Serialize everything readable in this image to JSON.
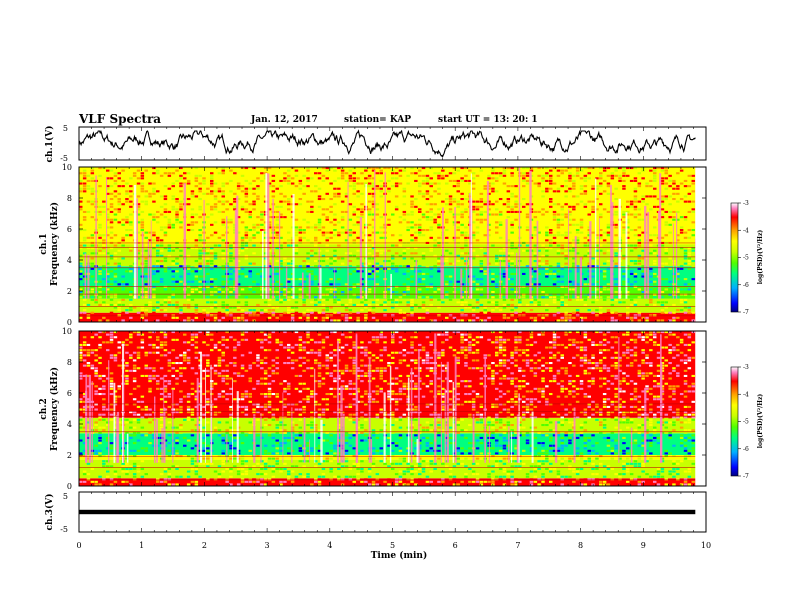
{
  "header": {
    "title": "VLF Spectra",
    "date": "Jan. 12, 2017",
    "station": "station= KAP",
    "start": "start UT = 13: 20: 1"
  },
  "colors": {
    "scale": [
      "#000080",
      "#0000ff",
      "#00b0ff",
      "#00ff80",
      "#50ff00",
      "#c8ff00",
      "#ffff00",
      "#ffa000",
      "#ff0000",
      "#ff80c0",
      "#ffffff"
    ]
  },
  "chart_data": [
    {
      "type": "line",
      "panel": "ch1-waveform",
      "ylabel": "ch.1(V)",
      "ylim": [
        -5,
        5
      ],
      "yticks": [
        "5",
        "-5"
      ],
      "description_values": {
        "mean": 0.5,
        "min": -4.5,
        "max": 3.8
      },
      "x_range": [
        0,
        9.83
      ]
    },
    {
      "type": "heatmap",
      "panel": "ch1-spectrogram",
      "ylabel": "ch.1\nFrequency (kHz)",
      "ylim": [
        0,
        10
      ],
      "yticks": [
        "0",
        "2",
        "4",
        "6",
        "8",
        "10"
      ],
      "x_range": [
        0,
        9.83
      ],
      "bands": [
        {
          "f0": 0,
          "f1": 0.6,
          "level": -4.0
        },
        {
          "f0": 0.6,
          "f1": 1.5,
          "level": -5.0
        },
        {
          "f0": 1.5,
          "f1": 2.3,
          "level": -5.3
        },
        {
          "f0": 2.3,
          "f1": 3.6,
          "level": -5.8
        },
        {
          "f0": 3.6,
          "f1": 5.0,
          "level": -5.0
        },
        {
          "f0": 5.0,
          "f1": 7.0,
          "level": -4.6
        },
        {
          "f0": 7.0,
          "f1": 10.0,
          "level": -4.4
        }
      ],
      "lines_khz": [
        0.4,
        1.0,
        1.8,
        2.3,
        3.5,
        4.2,
        4.8,
        5.1
      ],
      "colorbar": {
        "label": "log(PSD)(V²/Hz)",
        "range": [
          -7,
          -3
        ],
        "ticks": [
          "-3",
          "-4",
          "-5",
          "-6",
          "-7"
        ]
      }
    },
    {
      "type": "heatmap",
      "panel": "ch2-spectrogram",
      "ylabel": "ch.2\nFrequency (kHz)",
      "ylim": [
        0,
        10
      ],
      "yticks": [
        "0",
        "2",
        "4",
        "6",
        "8",
        "10"
      ],
      "x_range": [
        0,
        9.83
      ],
      "bands": [
        {
          "f0": 0,
          "f1": 0.5,
          "level": -4.0
        },
        {
          "f0": 0.5,
          "f1": 1.7,
          "level": -5.2
        },
        {
          "f0": 1.7,
          "f1": 2.0,
          "level": -4.8
        },
        {
          "f0": 2.0,
          "f1": 3.4,
          "level": -5.9
        },
        {
          "f0": 3.4,
          "f1": 4.4,
          "level": -4.9
        },
        {
          "f0": 4.4,
          "f1": 10.0,
          "level": -3.9
        }
      ],
      "lines_khz": [
        0.4,
        1.2,
        1.9,
        3.5,
        4.5,
        4.8,
        5.3
      ],
      "colorbar": {
        "label": "log(PSD)(V²/Hz)",
        "range": [
          -7,
          -3
        ],
        "ticks": [
          "-3",
          "-4",
          "-5",
          "-6",
          "-7"
        ]
      }
    },
    {
      "type": "line",
      "panel": "ch3-waveform",
      "ylabel": "ch.3(V)",
      "ylim": [
        -5,
        5
      ],
      "yticks": [
        "5",
        "-5"
      ],
      "description_values": {
        "mean": 0,
        "amplitude": 0.3
      },
      "x_range": [
        0,
        9.83
      ]
    }
  ],
  "xaxis": {
    "label": "Time (min)",
    "ticks": [
      "0",
      "1",
      "2",
      "3",
      "4",
      "5",
      "6",
      "7",
      "8",
      "9",
      "10"
    ],
    "xlim": [
      0,
      10
    ]
  }
}
